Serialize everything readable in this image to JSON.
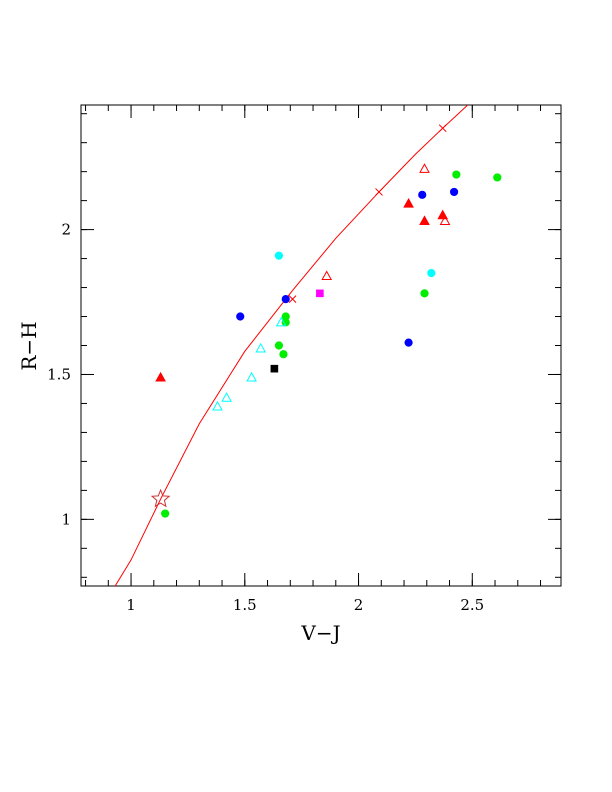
{
  "chart_data": {
    "type": "scatter",
    "title": "",
    "xlabel": "V−J",
    "ylabel": "R−H",
    "xlim": [
      0.78,
      2.89
    ],
    "ylim": [
      0.77,
      2.43
    ],
    "grid": false,
    "x_ticks": [
      {
        "value": 1,
        "label": "1"
      },
      {
        "value": 1.5,
        "label": "1.5"
      },
      {
        "value": 2,
        "label": "2"
      },
      {
        "value": 2.5,
        "label": "2.5"
      }
    ],
    "y_ticks": [
      {
        "value": 1,
        "label": "1"
      },
      {
        "value": 1.5,
        "label": "1.5"
      },
      {
        "value": 2,
        "label": "2"
      }
    ],
    "x_minor_step": 0.1,
    "y_minor_step": 0.1,
    "curve": {
      "color": "#ff0000",
      "points": [
        [
          0.93,
          0.77
        ],
        [
          1.0,
          0.86
        ],
        [
          1.13,
          1.07
        ],
        [
          1.3,
          1.33
        ],
        [
          1.5,
          1.58
        ],
        [
          1.71,
          1.79
        ],
        [
          1.9,
          1.97
        ],
        [
          2.09,
          2.13
        ],
        [
          2.25,
          2.26
        ],
        [
          2.37,
          2.35
        ],
        [
          2.48,
          2.43
        ]
      ],
      "cross_markers": [
        [
          1.71,
          1.76
        ],
        [
          2.09,
          2.13
        ],
        [
          2.37,
          2.35
        ]
      ]
    },
    "series": [
      {
        "marker": "circle",
        "color": "#0000ff",
        "filled": true,
        "points": [
          [
            1.48,
            1.7
          ],
          [
            1.68,
            1.76
          ],
          [
            2.22,
            1.61
          ],
          [
            2.28,
            2.12
          ],
          [
            2.42,
            2.13
          ]
        ]
      },
      {
        "marker": "circle",
        "color": "#00ee00",
        "filled": true,
        "points": [
          [
            1.15,
            1.02
          ],
          [
            1.65,
            1.6
          ],
          [
            1.67,
            1.57
          ],
          [
            1.68,
            1.68
          ],
          [
            1.68,
            1.7
          ],
          [
            2.29,
            1.78
          ],
          [
            2.43,
            2.19
          ],
          [
            2.61,
            2.18
          ]
        ]
      },
      {
        "marker": "circle",
        "color": "#00ffff",
        "filled": true,
        "points": [
          [
            1.65,
            1.91
          ],
          [
            2.32,
            1.85
          ]
        ]
      },
      {
        "marker": "triangle",
        "color": "#ff0000",
        "filled": true,
        "points": [
          [
            1.13,
            1.49
          ],
          [
            2.22,
            2.09
          ],
          [
            2.29,
            2.03
          ],
          [
            2.37,
            2.05
          ]
        ]
      },
      {
        "marker": "triangle",
        "color": "#ff0000",
        "filled": false,
        "points": [
          [
            1.86,
            1.84
          ],
          [
            2.29,
            2.21
          ],
          [
            2.38,
            2.03
          ]
        ]
      },
      {
        "marker": "triangle",
        "color": "#00ffff",
        "filled": false,
        "points": [
          [
            1.38,
            1.39
          ],
          [
            1.42,
            1.42
          ],
          [
            1.53,
            1.49
          ],
          [
            1.57,
            1.59
          ],
          [
            1.66,
            1.68
          ]
        ]
      },
      {
        "marker": "square",
        "color": "#000000",
        "filled": true,
        "points": [
          [
            1.63,
            1.52
          ]
        ]
      },
      {
        "marker": "square",
        "color": "#ff00ff",
        "filled": true,
        "points": [
          [
            1.83,
            1.78
          ]
        ]
      },
      {
        "marker": "star",
        "color": "#cc3333",
        "filled": false,
        "points": [
          [
            1.13,
            1.07
          ]
        ]
      }
    ]
  }
}
